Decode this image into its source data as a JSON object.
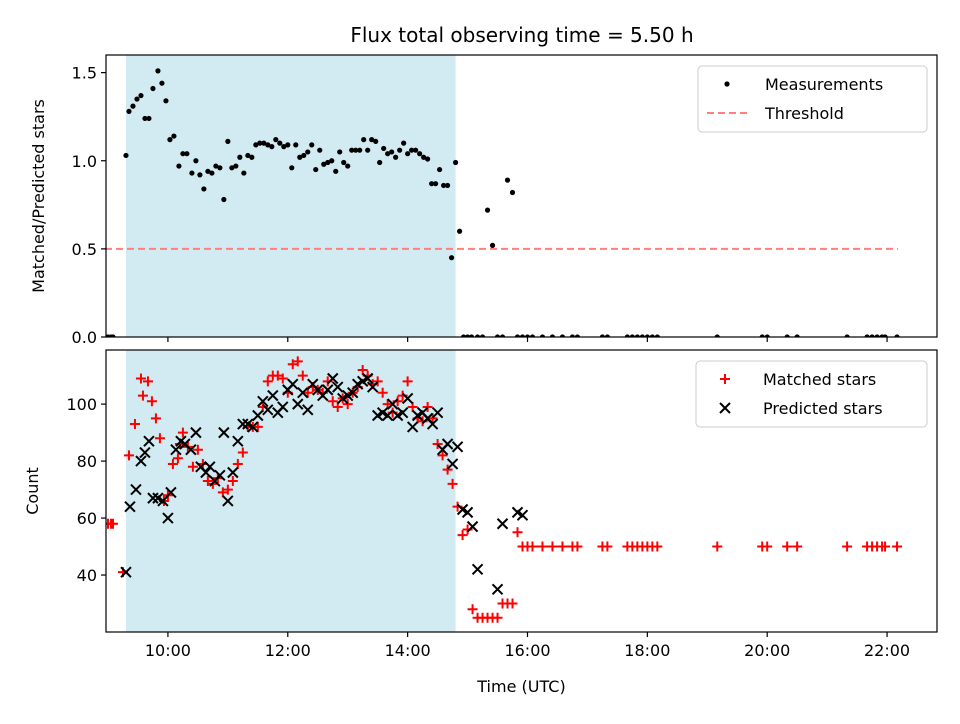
{
  "title": "Flux total observing time = 5.50 h",
  "colors": {
    "shade": "#add8e6",
    "measurement": "#000000",
    "threshold": "#ff7f7f",
    "matched": "#ff0000",
    "predicted": "#000000"
  },
  "chart_data": [
    {
      "type": "scatter",
      "panel": "top",
      "ylabel": "Matched/Predicted stars",
      "xlim": [
        "08:58",
        "22:50"
      ],
      "ylim": [
        0,
        1.6
      ],
      "yticks": [
        0.0,
        0.5,
        1.0,
        1.5
      ],
      "ytick_labels": [
        "0.0",
        "0.5",
        "1.0",
        "1.5"
      ],
      "shaded_interval": [
        "09:18",
        "14:48"
      ],
      "legend": {
        "position": "top-right",
        "entries": [
          "Measurements",
          "Threshold"
        ]
      },
      "threshold": {
        "name": "Threshold",
        "value": 0.5,
        "x_range": [
          "08:57",
          "22:11"
        ],
        "style": "dashed"
      },
      "series": [
        {
          "name": "Measurements",
          "x": [
            "09:18",
            "09:21",
            "09:25",
            "09:29",
            "09:33",
            "09:37",
            "09:41",
            "09:45",
            "09:50",
            "09:54",
            "09:58",
            "10:02",
            "10:06",
            "10:11",
            "10:15",
            "10:19",
            "10:24",
            "10:28",
            "10:32",
            "10:36",
            "10:40",
            "10:44",
            "10:48",
            "10:52",
            "10:56",
            "11:00",
            "11:04",
            "11:08",
            "11:12",
            "11:16",
            "11:20",
            "11:24",
            "11:28",
            "11:32",
            "11:36",
            "11:40",
            "11:44",
            "11:48",
            "11:52",
            "11:56",
            "12:00",
            "12:04",
            "12:08",
            "12:12",
            "12:16",
            "12:20",
            "12:24",
            "12:28",
            "12:32",
            "12:36",
            "12:40",
            "12:44",
            "12:48",
            "12:52",
            "12:56",
            "13:00",
            "13:04",
            "13:08",
            "13:12",
            "13:16",
            "13:20",
            "13:24",
            "13:28",
            "13:32",
            "13:36",
            "13:40",
            "13:44",
            "13:48",
            "13:52",
            "13:56",
            "14:00",
            "14:04",
            "14:08",
            "14:12",
            "14:16",
            "14:20",
            "14:24",
            "14:28",
            "14:32",
            "14:36",
            "14:40",
            "14:44",
            "14:48",
            "14:52",
            "14:56",
            "15:00",
            "15:04",
            "15:10",
            "15:15",
            "15:20",
            "15:25",
            "15:30",
            "15:35",
            "15:40",
            "15:45",
            "15:50",
            "15:55",
            "16:00",
            "16:05"
          ],
          "y": [
            1.03,
            1.28,
            1.31,
            1.35,
            1.37,
            1.24,
            1.24,
            1.41,
            1.51,
            1.44,
            1.34,
            1.12,
            1.14,
            0.97,
            1.04,
            1.04,
            0.93,
            1.0,
            0.92,
            0.84,
            0.94,
            0.93,
            0.97,
            0.96,
            0.78,
            1.11,
            0.96,
            0.97,
            1.02,
            0.93,
            1.03,
            1.02,
            1.09,
            1.1,
            1.1,
            1.09,
            1.08,
            1.12,
            1.1,
            1.08,
            1.09,
            0.96,
            1.09,
            1.02,
            1.03,
            1.05,
            1.09,
            0.95,
            1.06,
            0.98,
            0.99,
            1.0,
            0.94,
            1.05,
            0.99,
            0.97,
            1.06,
            1.06,
            1.06,
            1.12,
            1.06,
            1.12,
            1.11,
            0.99,
            1.07,
            1.04,
            1.05,
            1.02,
            1.06,
            1.1,
            1.04,
            1.06,
            1.06,
            1.04,
            1.02,
            1.01,
            0.87,
            0.87,
            0.95,
            0.86,
            0.86,
            0.45,
            0.99,
            0.6,
            0.0,
            0.0,
            0.0,
            0.0,
            0.0,
            0.72,
            0.52,
            0.0,
            0.0,
            0.89,
            0.82,
            0.0,
            0.0,
            0.0,
            0.0
          ]
        },
        {
          "name": "Measurements (zero)",
          "x": [
            "08:57",
            "09:00",
            "09:03",
            "09:05",
            "16:15",
            "16:25",
            "16:35",
            "16:45",
            "16:50",
            "17:15",
            "17:20",
            "17:40",
            "17:45",
            "17:50",
            "17:55",
            "18:00",
            "18:05",
            "18:10",
            "19:10",
            "19:55",
            "20:00",
            "20:20",
            "20:30",
            "21:20",
            "21:40",
            "21:45",
            "21:50",
            "21:55",
            "21:58",
            "22:10"
          ],
          "y": [
            0,
            0,
            0,
            0,
            0,
            0,
            0,
            0,
            0,
            0,
            0,
            0,
            0,
            0,
            0,
            0,
            0,
            0,
            0,
            0,
            0,
            0,
            0,
            0,
            0,
            0,
            0,
            0,
            0,
            0
          ]
        }
      ]
    },
    {
      "type": "scatter",
      "panel": "bottom",
      "xlabel": "Time (UTC)",
      "ylabel": "Count",
      "xlim": [
        "08:58",
        "22:50"
      ],
      "ylim": [
        20,
        119
      ],
      "yticks": [
        40,
        60,
        80,
        100
      ],
      "ytick_labels": [
        "40",
        "60",
        "80",
        "100"
      ],
      "xticks": [
        "10:00",
        "12:00",
        "14:00",
        "16:00",
        "18:00",
        "20:00",
        "22:00"
      ],
      "shaded_interval": [
        "09:18",
        "14:48"
      ],
      "legend": {
        "position": "top-right",
        "entries": [
          "Matched stars",
          "Predicted stars"
        ]
      },
      "series": [
        {
          "name": "Matched stars",
          "marker": "plus",
          "x": [
            "08:57",
            "09:00",
            "09:03",
            "09:05",
            "09:15",
            "09:21",
            "09:27",
            "09:33",
            "09:35",
            "09:40",
            "09:44",
            "09:48",
            "09:52",
            "09:56",
            "10:00",
            "10:05",
            "10:10",
            "10:12",
            "10:15",
            "10:20",
            "10:25",
            "10:30",
            "10:35",
            "10:40",
            "10:45",
            "10:50",
            "10:55",
            "11:00",
            "11:05",
            "11:10",
            "11:15",
            "11:20",
            "11:25",
            "11:30",
            "11:35",
            "11:40",
            "11:45",
            "11:50",
            "11:55",
            "12:00",
            "12:05",
            "12:10",
            "12:15",
            "12:20",
            "12:25",
            "12:30",
            "12:35",
            "12:40",
            "12:45",
            "12:50",
            "12:55",
            "13:00",
            "13:05",
            "13:10",
            "13:15",
            "13:20",
            "13:25",
            "13:30",
            "13:35",
            "13:40",
            "13:45",
            "13:50",
            "13:55",
            "14:00",
            "14:05",
            "14:10",
            "14:15",
            "14:20",
            "14:25",
            "14:30",
            "14:35",
            "14:40",
            "14:45",
            "14:50",
            "14:55",
            "15:00",
            "15:05",
            "15:10",
            "15:15",
            "15:20",
            "15:25",
            "15:30",
            "15:35",
            "15:40",
            "15:45",
            "15:50",
            "15:55",
            "16:00",
            "16:05",
            "16:15",
            "16:25",
            "16:35",
            "16:45",
            "16:50",
            "17:15",
            "17:20",
            "17:40",
            "17:45",
            "17:50",
            "17:55",
            "18:00",
            "18:05",
            "18:10",
            "19:10",
            "19:55",
            "20:00",
            "20:20",
            "20:30",
            "21:20",
            "21:40",
            "21:45",
            "21:50",
            "21:55",
            "21:58",
            "22:10"
          ],
          "y": [
            58,
            58,
            58,
            58,
            41,
            82,
            93,
            109,
            103,
            108,
            101,
            95,
            88,
            66,
            68,
            79,
            81,
            86,
            90,
            85,
            78,
            84,
            79,
            73,
            72,
            74,
            69,
            70,
            73,
            79,
            83,
            92,
            92,
            92,
            99,
            108,
            110,
            110,
            109,
            104,
            114,
            115,
            110,
            104,
            106,
            105,
            104,
            108,
            101,
            99,
            102,
            100,
            104,
            106,
            112,
            110,
            107,
            108,
            104,
            100,
            97,
            101,
            103,
            108,
            99,
            95,
            94,
            99,
            95,
            86,
            82,
            77,
            72,
            64,
            54,
            56,
            28,
            25,
            25,
            25,
            25,
            25,
            30,
            30,
            30,
            55,
            50,
            50,
            50,
            50,
            50,
            50,
            50,
            50,
            50,
            50,
            50,
            50,
            50,
            50,
            50,
            50,
            50,
            50,
            50,
            50,
            50,
            50,
            50,
            50,
            50,
            50,
            50,
            50,
            50
          ]
        },
        {
          "name": "Predicted stars",
          "marker": "x",
          "x": [
            "09:18",
            "09:22",
            "09:28",
            "09:33",
            "09:37",
            "09:41",
            "09:45",
            "09:50",
            "09:55",
            "10:00",
            "10:03",
            "10:08",
            "10:13",
            "10:17",
            "10:23",
            "10:28",
            "10:33",
            "10:38",
            "10:42",
            "10:47",
            "10:52",
            "10:56",
            "11:00",
            "11:05",
            "11:10",
            "11:15",
            "11:20",
            "11:25",
            "11:30",
            "11:35",
            "11:40",
            "11:45",
            "11:50",
            "11:55",
            "12:00",
            "12:05",
            "12:10",
            "12:15",
            "12:20",
            "12:25",
            "12:30",
            "12:35",
            "12:40",
            "12:45",
            "12:50",
            "12:55",
            "13:00",
            "13:05",
            "13:10",
            "13:15",
            "13:20",
            "13:25",
            "13:30",
            "13:35",
            "13:40",
            "13:45",
            "13:50",
            "13:55",
            "14:00",
            "14:05",
            "14:10",
            "14:15",
            "14:20",
            "14:25",
            "14:30",
            "14:35",
            "14:40",
            "14:45",
            "14:50",
            "14:55",
            "15:00",
            "15:05",
            "15:10",
            "15:30",
            "15:35",
            "15:50",
            "15:55"
          ],
          "y": [
            41,
            64,
            70,
            80,
            83,
            87,
            67,
            67,
            66,
            60,
            69,
            84,
            87,
            86,
            84,
            90,
            78,
            76,
            78,
            73,
            75,
            90,
            66,
            76,
            87,
            93,
            93,
            92,
            96,
            101,
            98,
            103,
            97,
            99,
            105,
            107,
            100,
            104,
            98,
            107,
            105,
            103,
            105,
            109,
            106,
            102,
            103,
            104,
            107,
            108,
            109,
            106,
            96,
            97,
            96,
            100,
            96,
            97,
            102,
            92,
            96,
            97,
            95,
            93,
            97,
            84,
            86,
            79,
            85,
            63,
            62,
            57,
            42,
            35,
            58,
            62,
            61
          ]
        }
      ]
    }
  ]
}
